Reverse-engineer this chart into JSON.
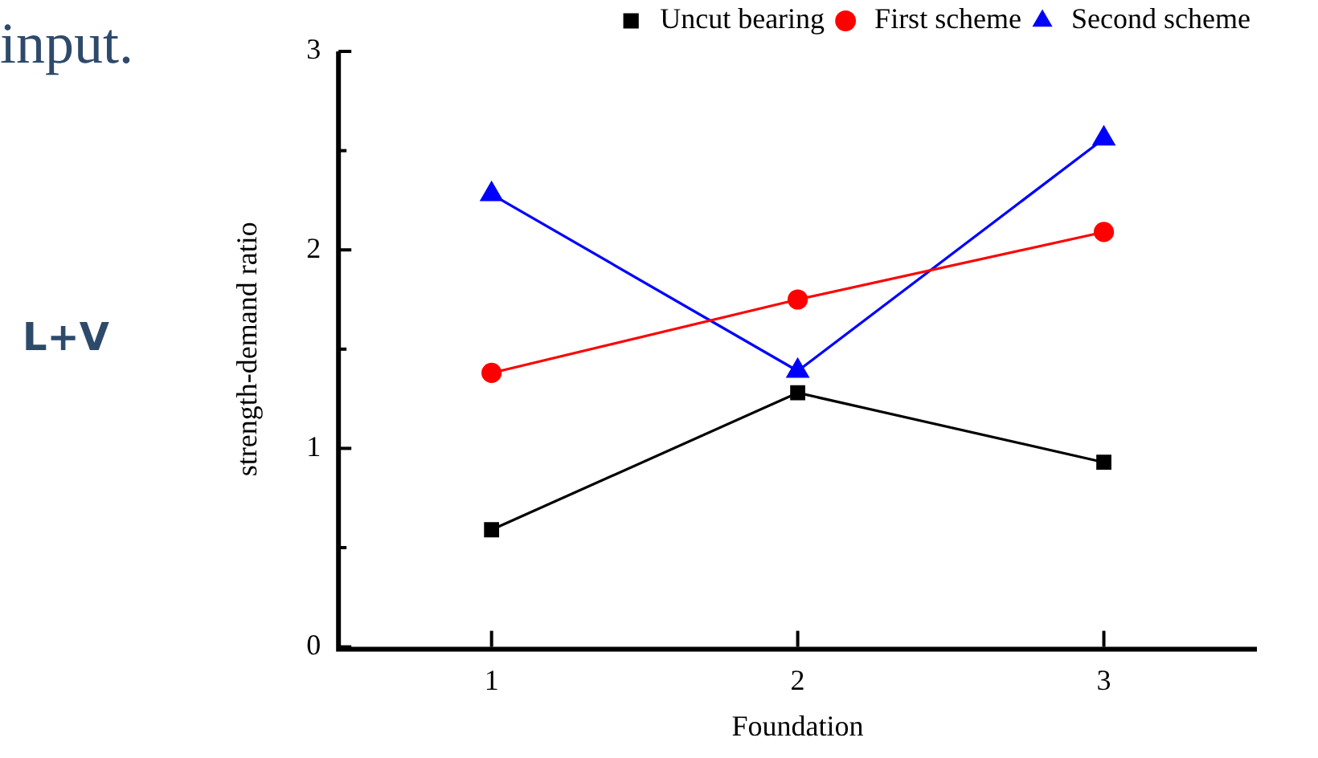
{
  "chart_data": {
    "type": "line",
    "xlabel": "Foundation",
    "ylabel": "strength-demand ratio",
    "x": [
      1,
      2,
      3
    ],
    "xlim": [
      0.5,
      3.5
    ],
    "xticks": [
      1,
      2,
      3
    ],
    "ylim": [
      0,
      3
    ],
    "yticks": [
      0,
      {
        "value": 0.5,
        "label": null
      },
      1,
      {
        "value": 1.5,
        "label": null
      },
      2,
      {
        "value": 2.5,
        "label": null
      },
      3
    ],
    "series": [
      {
        "name": "Uncut bearing",
        "color": "#000000",
        "marker": "square",
        "values": [
          0.59,
          1.28,
          0.93
        ]
      },
      {
        "name": "First scheme",
        "color": "#ff0000",
        "marker": "circle",
        "values": [
          1.38,
          1.75,
          2.09
        ]
      },
      {
        "name": "Second scheme",
        "color": "#0000ff",
        "marker": "triangle",
        "values": [
          2.28,
          1.39,
          2.56
        ]
      }
    ],
    "legend": "top right",
    "grid": false,
    "annotations": [
      "input.",
      "L+V"
    ]
  }
}
